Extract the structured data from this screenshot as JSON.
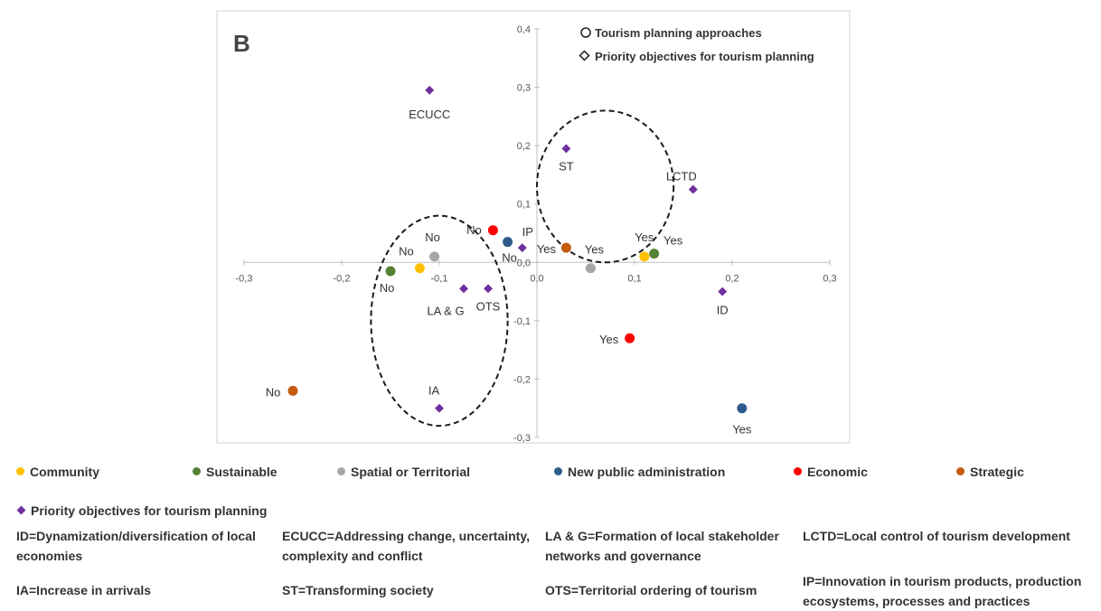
{
  "chart_data": {
    "type": "scatter",
    "panel_label": "B",
    "xlim": [
      -0.3,
      0.3
    ],
    "ylim": [
      -0.3,
      0.4
    ],
    "x_ticks": [
      "-0,3",
      "-0,2",
      "-0,1",
      "0,0",
      "0,1",
      "0,2",
      "0,3"
    ],
    "y_ticks": [
      "-0,3",
      "-0,2",
      "-0,1",
      "0,0",
      "0,1",
      "0,2",
      "0,3",
      "0,4"
    ],
    "inner_legend": [
      {
        "symbol": "circle",
        "label": "Tourism planning approaches"
      },
      {
        "symbol": "diamond",
        "label": "Priority objectives for tourism planning"
      }
    ],
    "categories": [
      {
        "key": "community",
        "name": "Community",
        "color": "#ffc000"
      },
      {
        "key": "sustainable",
        "name": "Sustainable",
        "color": "#548235"
      },
      {
        "key": "spatial",
        "name": "Spatial or Territorial",
        "color": "#a6a6a6"
      },
      {
        "key": "npa",
        "name": "New public administration",
        "color": "#2e5c8a"
      },
      {
        "key": "economic",
        "name": "Economic",
        "color": "#ff0000"
      },
      {
        "key": "strategic",
        "name": "Strategic",
        "color": "#c55a11"
      }
    ],
    "series": [
      {
        "category": "community",
        "marker": "circle",
        "points": [
          {
            "x": -0.12,
            "y": -0.01,
            "label": "No"
          },
          {
            "x": 0.11,
            "y": 0.01,
            "label": "Yes"
          }
        ]
      },
      {
        "category": "sustainable",
        "marker": "circle",
        "points": [
          {
            "x": -0.15,
            "y": -0.015,
            "label": "No"
          },
          {
            "x": 0.12,
            "y": 0.015,
            "label": "Yes"
          }
        ]
      },
      {
        "category": "spatial",
        "marker": "circle",
        "points": [
          {
            "x": -0.105,
            "y": 0.01,
            "label": "No"
          },
          {
            "x": 0.055,
            "y": -0.01,
            "label": "Yes"
          }
        ]
      },
      {
        "category": "npa",
        "marker": "circle",
        "points": [
          {
            "x": -0.03,
            "y": 0.035,
            "label": "No"
          },
          {
            "x": 0.21,
            "y": -0.25,
            "label": "Yes"
          }
        ]
      },
      {
        "category": "economic",
        "marker": "circle",
        "points": [
          {
            "x": -0.045,
            "y": 0.055,
            "label": "No"
          },
          {
            "x": 0.095,
            "y": -0.13,
            "label": "Yes"
          }
        ]
      },
      {
        "category": "strategic",
        "marker": "circle",
        "points": [
          {
            "x": -0.25,
            "y": -0.22,
            "label": "No"
          },
          {
            "x": 0.03,
            "y": 0.025,
            "label": "Yes"
          }
        ]
      },
      {
        "category": "objectives",
        "marker": "diamond",
        "color": "#7030a0",
        "points": [
          {
            "x": -0.11,
            "y": 0.295,
            "label": "ECUCC"
          },
          {
            "x": 0.03,
            "y": 0.195,
            "label": "ST"
          },
          {
            "x": 0.16,
            "y": 0.125,
            "label": "LCTD"
          },
          {
            "x": -0.015,
            "y": 0.025,
            "label": "IP"
          },
          {
            "x": -0.075,
            "y": -0.045,
            "label": "LA & G"
          },
          {
            "x": -0.05,
            "y": -0.045,
            "label": "OTS"
          },
          {
            "x": 0.19,
            "y": -0.05,
            "label": "ID"
          },
          {
            "x": -0.1,
            "y": -0.25,
            "label": "IA"
          }
        ]
      }
    ],
    "ellipses": [
      {
        "cx": -0.1,
        "cy": -0.1,
        "rx": 0.07,
        "ry": 0.18
      },
      {
        "cx": 0.07,
        "cy": 0.13,
        "rx": 0.07,
        "ry": 0.13
      }
    ]
  },
  "legend": {
    "objectives_label": "Priority objectives for tourism planning",
    "abbreviations": [
      {
        "text": "ID=Dynamization/diversification of local economies"
      },
      {
        "text": "ECUCC=Addressing change, uncertainty, complexity and conflict"
      },
      {
        "text": "LA & G=Formation of local stakeholder networks and governance"
      },
      {
        "text": "LCTD=Local control of tourism development"
      },
      {
        "text": "IA=Increase in arrivals"
      },
      {
        "text": "ST=Transforming society"
      },
      {
        "text": "OTS=Territorial ordering of tourism"
      },
      {
        "text": "IP=Innovation in tourism products, production ecosystems, processes and practices"
      }
    ]
  }
}
